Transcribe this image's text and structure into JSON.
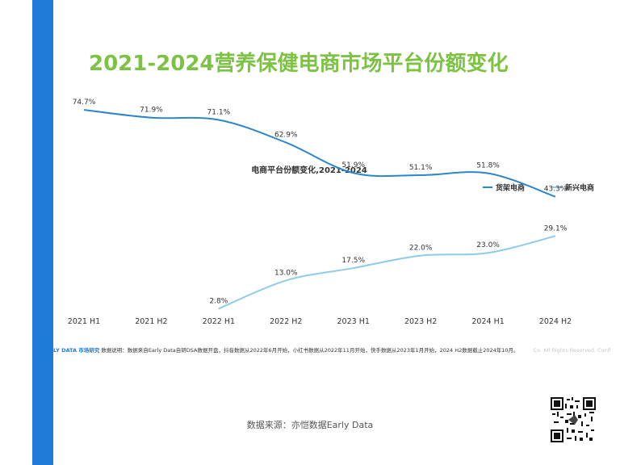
{
  "title": "2021-2024营养保健电商市场平台份额变化",
  "footnote": {
    "brand": "LY DATA 市场研究",
    "text": "数据说明：数据来自Early Data自研DSA数据开盘，抖音数据从2022年6月开始，小红书数据从2022年11月开始，快手数据从2023年1月开始，2024 H2数据截止2024年10月。",
    "copyright": "Co. All Rights Reserved. Confidentiality (only)."
  },
  "source": "数据来源：亦恺数据Early Data",
  "colors": {
    "accent_bar": "#1f7ad8",
    "title": "#7cc243",
    "series_1": "#2b86cc",
    "series_2": "#8fcbea"
  },
  "chart_data": {
    "type": "line",
    "title": "电商平台份额变化,2021-2024",
    "x": [
      "2021 H1",
      "2021 H2",
      "2022 H1",
      "2022 H2",
      "2023 H1",
      "2023 H2",
      "2024 H1",
      "2024 H2"
    ],
    "series": [
      {
        "name": "货架电商",
        "values": [
          74.7,
          71.9,
          71.1,
          62.9,
          51.9,
          51.1,
          51.8,
          43.3
        ],
        "labels": [
          "74.7%",
          "71.9%",
          "71.1%",
          "62.9%",
          "51.9%",
          "51.1%",
          "51.8%",
          "43.3%"
        ]
      },
      {
        "name": "新兴电商",
        "values": [
          null,
          null,
          2.8,
          13.0,
          17.5,
          22.0,
          23.0,
          29.1
        ],
        "labels": [
          "",
          "",
          "2.8%",
          "13.0%",
          "17.5%",
          "22.0%",
          "23.0%",
          "29.1%"
        ]
      }
    ],
    "ylim": [
      0,
      80
    ],
    "legend_position": "top-right",
    "grid": false
  }
}
